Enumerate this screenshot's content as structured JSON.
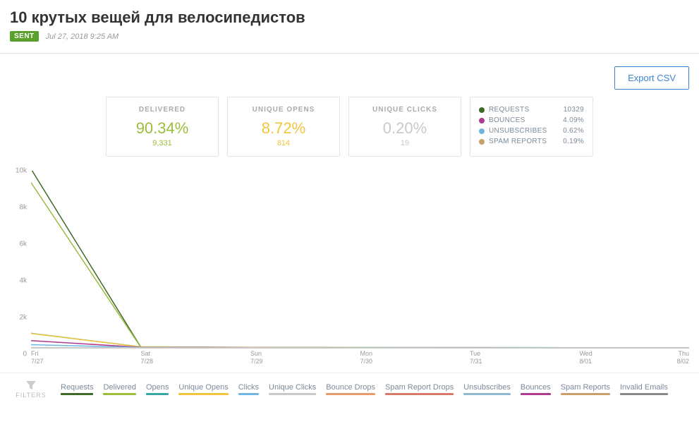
{
  "header": {
    "title": "10 крутых вещей для велосипедистов",
    "badge": "SENT",
    "timestamp": "Jul 27, 2018 9:25 AM"
  },
  "export": {
    "label": "Export CSV"
  },
  "stats": {
    "delivered": {
      "label": "DELIVERED",
      "pct": "90.34%",
      "count": "9,331"
    },
    "opens": {
      "label": "UNIQUE OPENS",
      "pct": "8.72%",
      "count": "814"
    },
    "clicks": {
      "label": "UNIQUE CLICKS",
      "pct": "0.20%",
      "count": "19"
    }
  },
  "side_stats": [
    {
      "label": "REQUESTS",
      "value": "10329",
      "color": "#3d6b25"
    },
    {
      "label": "BOUNCES",
      "value": "4.09%",
      "color": "#b03a8e"
    },
    {
      "label": "UNSUBSCRIBES",
      "value": "0.62%",
      "color": "#6fb7e0"
    },
    {
      "label": "SPAM REPORTS",
      "value": "0.19%",
      "color": "#c9a06a"
    }
  ],
  "chart": {
    "y_max": 10000,
    "y_ticks": [
      "10k",
      "8k",
      "6k",
      "4k",
      "2k",
      "0"
    ],
    "x_ticks": [
      {
        "day": "Fri",
        "date": "7/27",
        "pos": 0
      },
      {
        "day": "Sat",
        "date": "7/28",
        "pos": 0.1667
      },
      {
        "day": "Sun",
        "date": "7/29",
        "pos": 0.3333
      },
      {
        "day": "Mon",
        "date": "7/30",
        "pos": 0.5
      },
      {
        "day": "Tue",
        "date": "7/31",
        "pos": 0.6667
      },
      {
        "day": "Wed",
        "date": "8/01",
        "pos": 0.8333
      },
      {
        "day": "Thu",
        "date": "8/02",
        "pos": 1
      }
    ],
    "series": [
      {
        "name": "Requests",
        "color": "#3d6b25",
        "points": [
          10100,
          50,
          20,
          15,
          15,
          10,
          10
        ]
      },
      {
        "name": "Delivered",
        "color": "#9bbd3c",
        "points": [
          9331,
          40,
          18,
          12,
          12,
          8,
          8
        ]
      },
      {
        "name": "Opens",
        "color": "#3aa6a0",
        "points": [
          820,
          60,
          30,
          20,
          15,
          12,
          10
        ]
      },
      {
        "name": "Unique Opens",
        "color": "#f2c63b",
        "points": [
          814,
          55,
          28,
          18,
          14,
          11,
          9
        ]
      },
      {
        "name": "Bounces",
        "color": "#b03a8e",
        "points": [
          409,
          30,
          15,
          10,
          8,
          6,
          5
        ]
      },
      {
        "name": "Clicks",
        "color": "#6fb7e0",
        "points": [
          180,
          20,
          10,
          8,
          6,
          5,
          4
        ]
      },
      {
        "name": "Unique Clicks",
        "color": "#c9c9c9",
        "points": [
          19,
          5,
          3,
          2,
          2,
          1,
          1
        ]
      }
    ]
  },
  "legend": [
    {
      "label": "Requests",
      "color": "#3d6b25"
    },
    {
      "label": "Delivered",
      "color": "#9bbd3c"
    },
    {
      "label": "Opens",
      "color": "#3aa6a0"
    },
    {
      "label": "Unique Opens",
      "color": "#f2c63b"
    },
    {
      "label": "Clicks",
      "color": "#6fb7e0"
    },
    {
      "label": "Unique Clicks",
      "color": "#c9c9c9"
    },
    {
      "label": "Bounce Drops",
      "color": "#e89a6a"
    },
    {
      "label": "Spam Report Drops",
      "color": "#d87a6a"
    },
    {
      "label": "Unsubscribes",
      "color": "#8fb9cf"
    },
    {
      "label": "Bounces",
      "color": "#b03a8e"
    },
    {
      "label": "Spam Reports",
      "color": "#c9a06a"
    },
    {
      "label": "Invalid Emails",
      "color": "#8a8a8a"
    }
  ],
  "filters_label": "FILTERS"
}
